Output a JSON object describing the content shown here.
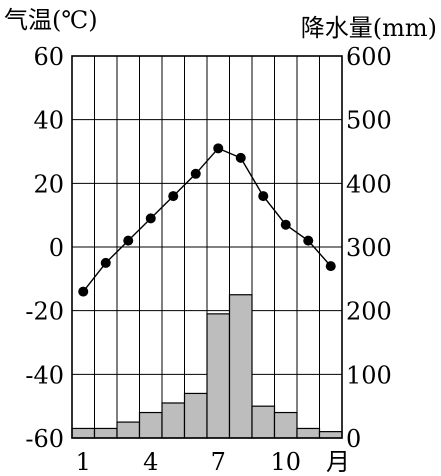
{
  "chart_data": {
    "type": "bar+line",
    "left_axis_label": "气温(℃)",
    "right_axis_label": "降水量(mm)",
    "x_unit_label": "月",
    "months": [
      1,
      2,
      3,
      4,
      5,
      6,
      7,
      8,
      9,
      10,
      11,
      12
    ],
    "x_tick_labels": [
      "1",
      "4",
      "7",
      "10"
    ],
    "x_tick_months": [
      1,
      4,
      7,
      10
    ],
    "temperature_c": [
      -14,
      -5,
      2,
      9,
      16,
      23,
      31,
      28,
      16,
      7,
      2,
      -6
    ],
    "precipitation_mm": [
      15,
      15,
      25,
      40,
      55,
      70,
      195,
      225,
      50,
      40,
      15,
      10
    ],
    "left_ylim": [
      -60,
      60
    ],
    "left_ticks": [
      -60,
      -40,
      -20,
      0,
      20,
      40,
      60
    ],
    "left_tick_labels": [
      "-60",
      "-40",
      "-20",
      "0",
      "20",
      "40",
      "60"
    ],
    "right_ylim": [
      0,
      600
    ],
    "right_ticks": [
      0,
      100,
      200,
      300,
      400,
      500,
      600
    ],
    "right_tick_labels": [
      "0",
      "100",
      "200",
      "300",
      "400",
      "500",
      "600"
    ],
    "grid": true,
    "colors": {
      "bar_fill": "#bdbdbd",
      "line": "#000000",
      "grid": "#000000"
    }
  }
}
